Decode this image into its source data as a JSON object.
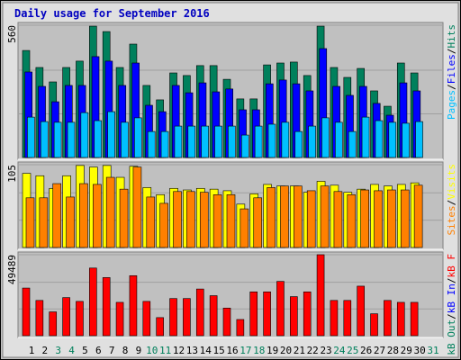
{
  "chart_data": [
    {
      "type": "bar",
      "title": "Daily usage for September 2016",
      "ylim": [
        0,
        560
      ],
      "yticks": [
        560
      ],
      "separator": "/",
      "series": [
        {
          "name": "Hits",
          "color": "#00805c",
          "values": [
            453,
            381,
            320,
            381,
            408,
            556,
            533,
            381,
            480,
            305,
            244,
            358,
            347,
            389,
            389,
            331,
            248,
            248,
            392,
            400,
            404,
            347,
            556,
            381,
            339,
            377,
            282,
            217,
            400,
            358,
            null
          ]
        },
        {
          "name": "Files",
          "color": "#0000ff",
          "values": [
            362,
            301,
            236,
            305,
            305,
            427,
            408,
            305,
            400,
            221,
            194,
            305,
            274,
            316,
            278,
            290,
            202,
            202,
            312,
            328,
            312,
            282,
            461,
            301,
            263,
            301,
            229,
            179,
            316,
            282,
            null
          ]
        },
        {
          "name": "Pages",
          "color": "#00c0ff",
          "values": [
            171,
            152,
            149,
            149,
            190,
            156,
            194,
            149,
            168,
            110,
            110,
            133,
            133,
            133,
            133,
            133,
            95,
            133,
            141,
            149,
            110,
            133,
            168,
            149,
            110,
            171,
            156,
            149,
            145,
            152,
            null
          ]
        }
      ]
    },
    {
      "type": "bar",
      "ylim": [
        0,
        105
      ],
      "yticks": [
        105
      ],
      "separator": "/",
      "series": [
        {
          "name": "Visits",
          "color": "#ffff00",
          "values": [
            94,
            91,
            75,
            91,
            104,
            102,
            104,
            89,
            103,
            76,
            67,
            75,
            73,
            75,
            74,
            72,
            55,
            68,
            80,
            78,
            78,
            70,
            84,
            79,
            70,
            74,
            80,
            78,
            80,
            82,
            null
          ]
        },
        {
          "name": "Sites",
          "color": "#ff8000",
          "values": [
            63,
            63,
            81,
            64,
            81,
            80,
            89,
            74,
            102,
            64,
            56,
            71,
            71,
            70,
            67,
            67,
            49,
            63,
            76,
            78,
            78,
            72,
            78,
            71,
            67,
            73,
            72,
            73,
            73,
            79,
            null
          ]
        }
      ]
    },
    {
      "type": "bar",
      "ylim": [
        0,
        49489
      ],
      "yticks": [
        49489
      ],
      "separator": "/",
      "categories": [
        "1",
        "2",
        "3",
        "4",
        "5",
        "6",
        "7",
        "8",
        "9",
        "10",
        "11",
        "12",
        "13",
        "14",
        "15",
        "16",
        "17",
        "18",
        "19",
        "20",
        "21",
        "22",
        "23",
        "24",
        "25",
        "26",
        "27",
        "28",
        "29",
        "30",
        "31"
      ],
      "weekend": [
        2,
        3,
        9,
        10,
        16,
        17,
        23,
        24,
        30
      ],
      "weekend_color": "#00805c",
      "series": [
        {
          "name": "kB F",
          "color": "#ff0000",
          "values": [
            29112,
            21543,
            14556,
            23289,
            20960,
            41338,
            35516,
            20378,
            36680,
            20960,
            11062,
            22707,
            22707,
            28529,
            24454,
            16884,
            9898,
            26782,
            26782,
            33186,
            23871,
            26782,
            49489,
            21543,
            21543,
            30276,
            13391,
            21543,
            20378,
            20378,
            null
          ]
        },
        {
          "name": "kB In",
          "color": "#0000ff"
        },
        {
          "name": "kB Out",
          "color": "#00805c"
        }
      ]
    }
  ]
}
